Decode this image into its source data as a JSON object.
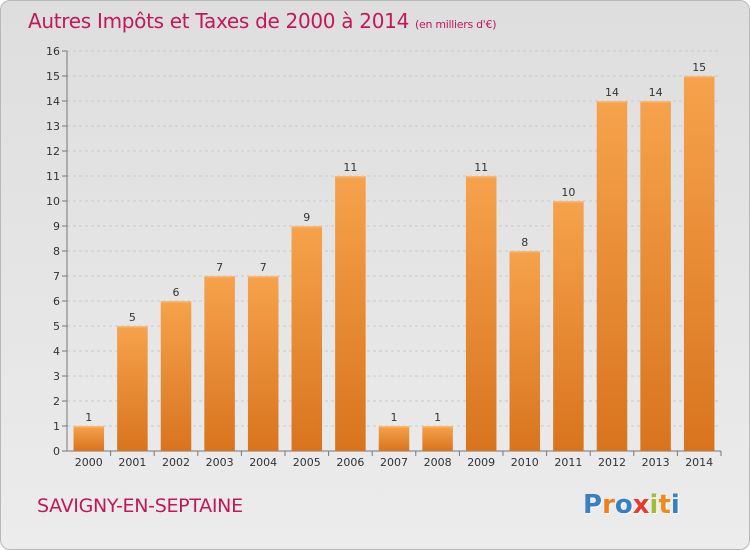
{
  "header": {
    "title": "Autres Impôts et Taxes de 2000 à 2014",
    "subtitle": "(en milliers d'€)"
  },
  "footer": {
    "commune": "SAVIGNY-EN-SEPTAINE",
    "logo": [
      "P",
      "r",
      "o",
      "x",
      "i",
      "t",
      "i"
    ]
  },
  "colors": {
    "title": "#c2185b",
    "bar_light": "#f6a24c",
    "bar_dark": "#d9741e",
    "logo": [
      "#3a7fc1",
      "#ee7f1c",
      "#3a7fc1",
      "#e73a2f",
      "#9bbf3b",
      "#e98d1d",
      "#3a7fc1"
    ]
  },
  "chart_data": {
    "type": "bar",
    "title": "Autres Impôts et Taxes de 2000 à 2014",
    "categories": [
      "2000",
      "2001",
      "2002",
      "2003",
      "2004",
      "2005",
      "2006",
      "2007",
      "2008",
      "2009",
      "2010",
      "2011",
      "2012",
      "2013",
      "2014"
    ],
    "values": [
      1,
      5,
      6,
      7,
      7,
      9,
      11,
      1,
      1,
      11,
      8,
      10,
      14,
      14,
      15
    ],
    "ylim": [
      0,
      16
    ],
    "yticks": [
      0,
      1,
      2,
      3,
      4,
      5,
      6,
      7,
      8,
      9,
      10,
      11,
      12,
      13,
      14,
      15,
      16
    ],
    "grid": true,
    "data_labels": true
  }
}
